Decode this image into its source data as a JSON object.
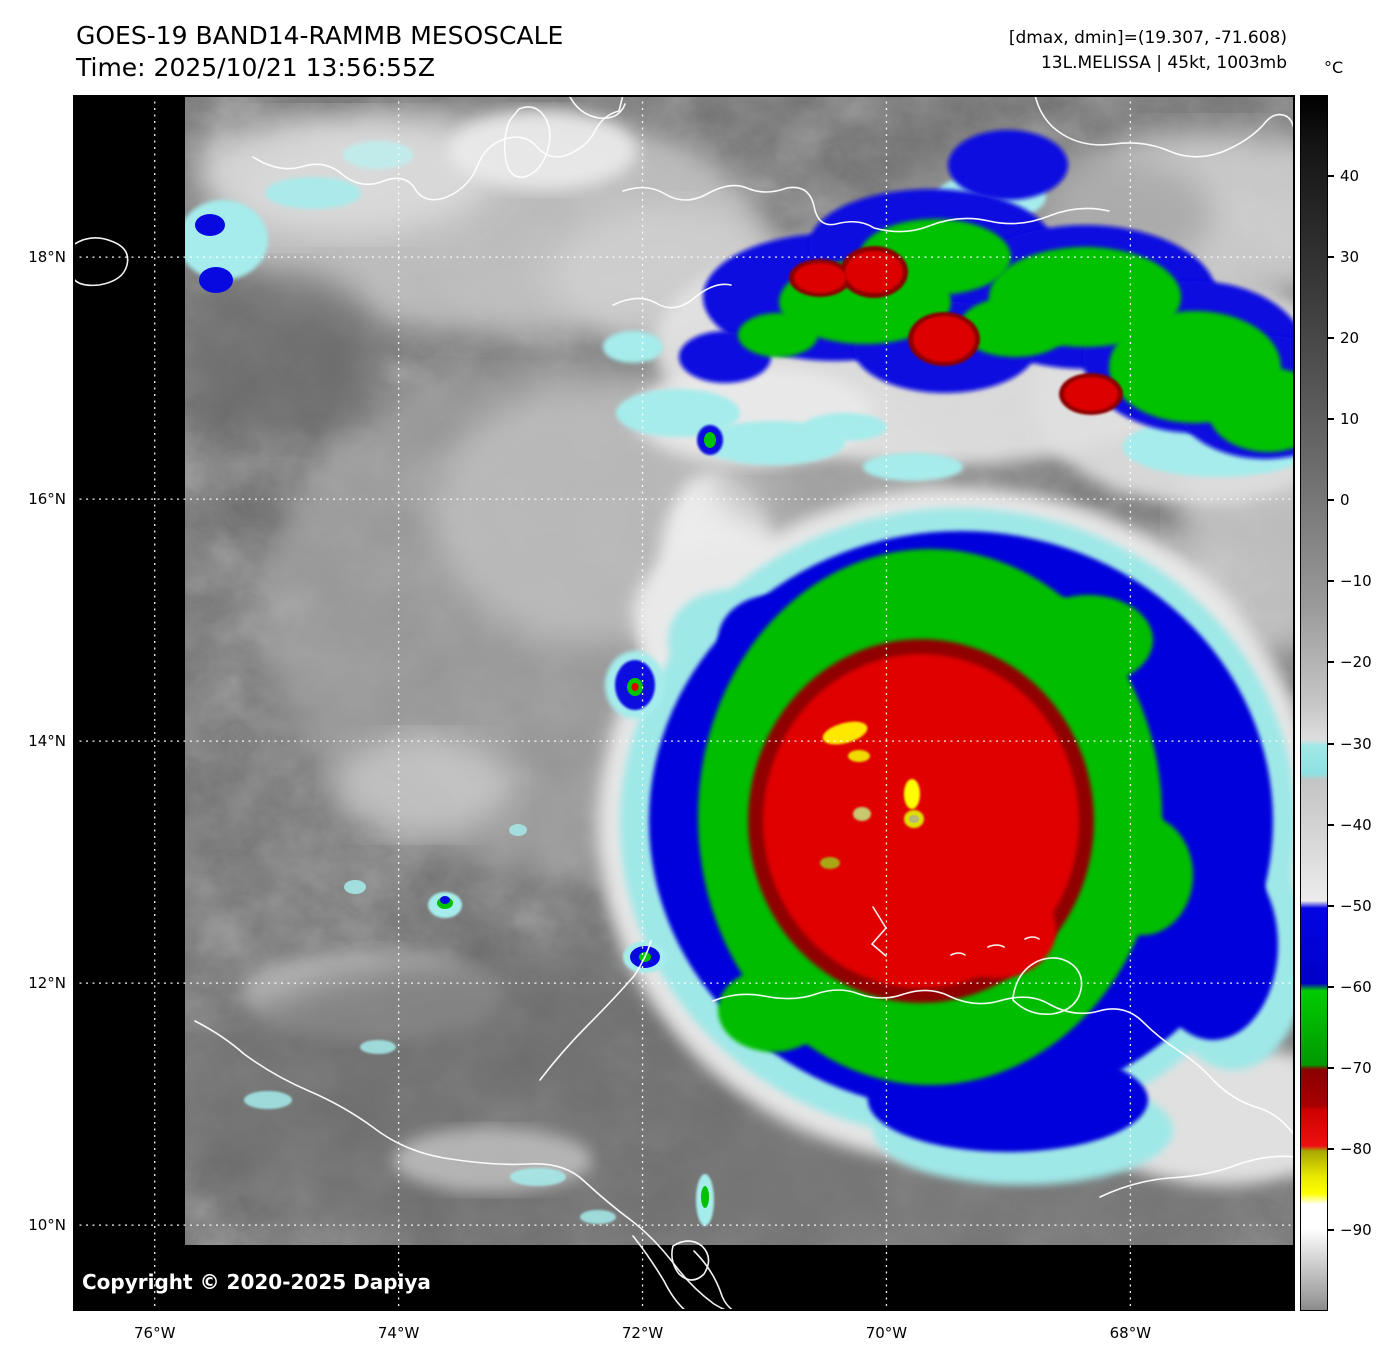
{
  "header": {
    "title": "GOES-19 BAND14-RAMMB MESOSCALE",
    "time_line": "Time: 2025/10/21 13:56:55Z"
  },
  "annotations": {
    "dmax_dmin": "[dmax, dmin]=(19.307, -71.608)",
    "storm_info": "13L.MELISSA | 45kt, 1003mb"
  },
  "colorbar": {
    "unit": "°C",
    "ticks": [
      {
        "label": "40",
        "value": 40
      },
      {
        "label": "30",
        "value": 30
      },
      {
        "label": "20",
        "value": 20
      },
      {
        "label": "10",
        "value": 10
      },
      {
        "label": "0",
        "value": 0
      },
      {
        "label": "−10",
        "value": -10
      },
      {
        "label": "−20",
        "value": -20
      },
      {
        "label": "−30",
        "value": -30
      },
      {
        "label": "−40",
        "value": -40
      },
      {
        "label": "−50",
        "value": -50
      },
      {
        "label": "−60",
        "value": -60
      },
      {
        "label": "−70",
        "value": -70
      },
      {
        "label": "−80",
        "value": -80
      },
      {
        "label": "−90",
        "value": -90
      }
    ],
    "palette": {
      "warm_dark": "#000000",
      "cool_gray": "#e8e8e8",
      "cyan_band": "#a2e8e8",
      "blue": "#0606dc",
      "green": "#00bd00",
      "dark_red": "#8f0000",
      "red": "#e00404",
      "yellow": "#ffff00",
      "cold_white": "#ffffff"
    }
  },
  "axes": {
    "lat": [
      {
        "label": "18°N",
        "value": 18
      },
      {
        "label": "16°N",
        "value": 16
      },
      {
        "label": "14°N",
        "value": 14
      },
      {
        "label": "12°N",
        "value": 12
      },
      {
        "label": "10°N",
        "value": 10
      }
    ],
    "lon": [
      {
        "label": "76°W",
        "value": 76
      },
      {
        "label": "74°W",
        "value": 74
      },
      {
        "label": "72°W",
        "value": 72
      },
      {
        "label": "70°W",
        "value": 70
      },
      {
        "label": "68°W",
        "value": 68
      }
    ]
  },
  "copyright": "Copyright © 2020-2025 Dapiya"
}
